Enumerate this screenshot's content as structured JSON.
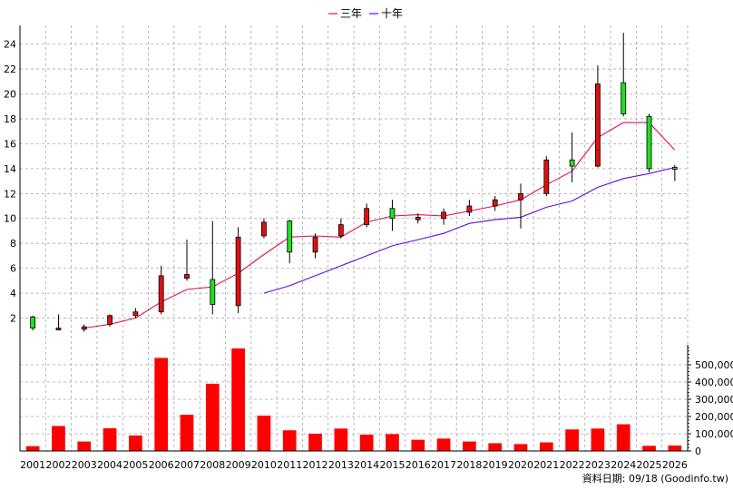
{
  "chart_data": {
    "type": "candlestick",
    "years": [
      "2001",
      "2002",
      "2003",
      "2004",
      "2005",
      "2006",
      "2007",
      "2008",
      "2009",
      "2010",
      "2011",
      "2012",
      "2013",
      "2014",
      "2015",
      "2016",
      "2017",
      "2018",
      "2019",
      "2020",
      "2021",
      "2022",
      "2023",
      "2024",
      "2025",
      "2026"
    ],
    "candles": [
      {
        "open": 2.1,
        "close": 1.2,
        "high": 2.2,
        "low": 1.0
      },
      {
        "open": 1.1,
        "close": 1.2,
        "high": 2.3,
        "low": 1.0
      },
      {
        "open": 1.1,
        "close": 1.3,
        "high": 1.5,
        "low": 0.9
      },
      {
        "open": 1.5,
        "close": 2.2,
        "high": 2.3,
        "low": 1.3
      },
      {
        "open": 2.2,
        "close": 2.5,
        "high": 2.8,
        "low": 2.0
      },
      {
        "open": 2.5,
        "close": 5.4,
        "high": 6.2,
        "low": 2.3
      },
      {
        "open": 5.2,
        "close": 5.5,
        "high": 8.3,
        "low": 5.0
      },
      {
        "open": 5.1,
        "close": 3.1,
        "high": 9.8,
        "low": 2.3
      },
      {
        "open": 3.0,
        "close": 8.5,
        "high": 9.3,
        "low": 2.4
      },
      {
        "open": 8.6,
        "close": 9.7,
        "high": 10.0,
        "low": 8.4
      },
      {
        "open": 9.8,
        "close": 7.3,
        "high": 9.9,
        "low": 6.4
      },
      {
        "open": 7.3,
        "close": 8.5,
        "high": 8.8,
        "low": 6.8
      },
      {
        "open": 8.6,
        "close": 9.5,
        "high": 10.0,
        "low": 8.4
      },
      {
        "open": 9.5,
        "close": 10.8,
        "high": 11.2,
        "low": 9.3
      },
      {
        "open": 10.8,
        "close": 10.0,
        "high": 11.5,
        "low": 9.0
      },
      {
        "open": 9.9,
        "close": 10.1,
        "high": 10.4,
        "low": 9.6
      },
      {
        "open": 10.0,
        "close": 10.5,
        "high": 10.8,
        "low": 9.5
      },
      {
        "open": 10.5,
        "close": 11.0,
        "high": 11.5,
        "low": 10.2
      },
      {
        "open": 11.0,
        "close": 11.5,
        "high": 11.8,
        "low": 10.6
      },
      {
        "open": 11.5,
        "close": 12.0,
        "high": 12.8,
        "low": 9.2
      },
      {
        "open": 12.0,
        "close": 14.7,
        "high": 15.0,
        "low": 11.8
      },
      {
        "open": 14.7,
        "close": 14.2,
        "high": 16.9,
        "low": 12.9
      },
      {
        "open": 14.2,
        "close": 20.8,
        "high": 22.3,
        "low": 14.1
      },
      {
        "open": 20.9,
        "close": 18.4,
        "high": 24.9,
        "low": 18.2
      },
      {
        "open": 18.2,
        "close": 14.0,
        "high": 18.4,
        "low": 13.7
      },
      {
        "open": 14.1,
        "close": 14.0,
        "high": 14.3,
        "low": 13.0
      }
    ],
    "ma3": [
      null,
      null,
      1.2,
      1.5,
      2.0,
      3.3,
      4.3,
      4.5,
      5.6,
      7.1,
      8.5,
      8.6,
      8.5,
      9.7,
      10.2,
      10.3,
      10.2,
      10.6,
      11.0,
      11.5,
      12.7,
      13.8,
      16.5,
      17.7,
      17.7,
      15.5
    ],
    "ma10": [
      null,
      null,
      null,
      null,
      null,
      null,
      null,
      null,
      null,
      4.0,
      4.6,
      5.4,
      6.2,
      7.0,
      7.8,
      8.3,
      8.8,
      9.6,
      9.9,
      10.1,
      10.9,
      11.4,
      12.5,
      13.2,
      13.6,
      14.1
    ],
    "volume": [
      28000,
      145000,
      55000,
      132000,
      90000,
      540000,
      210000,
      390000,
      595000,
      205000,
      120000,
      100000,
      130000,
      95000,
      98000,
      65000,
      72000,
      55000,
      45000,
      40000,
      50000,
      125000,
      130000,
      155000,
      30000,
      32000
    ],
    "price_axis": {
      "min": 0,
      "max": 25.5,
      "ticks": [
        2,
        4,
        6,
        8,
        10,
        12,
        14,
        16,
        18,
        20,
        22,
        24
      ]
    },
    "volume_axis": {
      "min": 0,
      "max": 600000,
      "ticks": [
        0,
        100000,
        200000,
        300000,
        400000,
        500000
      ],
      "tick_labels": [
        "0",
        "100,000",
        "200,000",
        "300,000",
        "400,000",
        "500,000"
      ]
    },
    "legend": [
      {
        "label": "三年",
        "color": "#e0105a"
      },
      {
        "label": "十年",
        "color": "#5a10e0"
      }
    ],
    "source": "資料日期: 09/18 (Goodinfo.tw)",
    "grid": true,
    "legend_position": "top-center",
    "colors": {
      "up": "#e01010",
      "down": "#20e020",
      "volume": "#ff0000",
      "ma3": "#e0105a",
      "ma10": "#5a10e0"
    }
  }
}
